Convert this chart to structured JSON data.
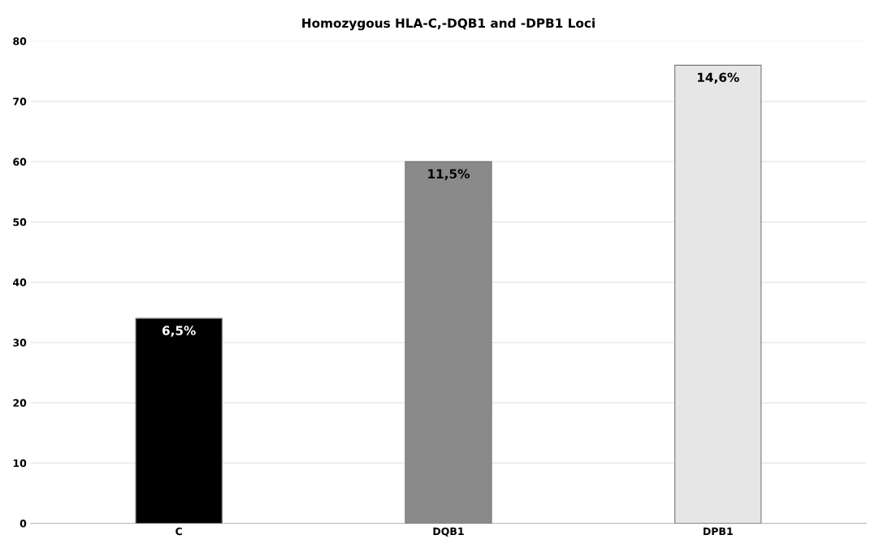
{
  "chart_data": {
    "type": "bar",
    "title": "Homozygous HLA-C,-DQB1 and -DPB1 Loci",
    "categories": [
      "C",
      "DQB1",
      "DPB1"
    ],
    "values": [
      34,
      60,
      76
    ],
    "colors": [
      "#000000",
      "#8a8a8a",
      "#e6e6e6"
    ],
    "annotations": [
      {
        "text": "6,5%",
        "x": "C",
        "y": 34
      },
      {
        "text": "11,5%",
        "x": "DQB1",
        "y": 60
      },
      {
        "text": "14,6%",
        "x": "DPB1",
        "y": 76
      }
    ],
    "ylim": [
      0,
      80
    ],
    "yticks": [
      0,
      10,
      20,
      30,
      40,
      50,
      60,
      70,
      80
    ],
    "grid": "y",
    "legend": false
  }
}
